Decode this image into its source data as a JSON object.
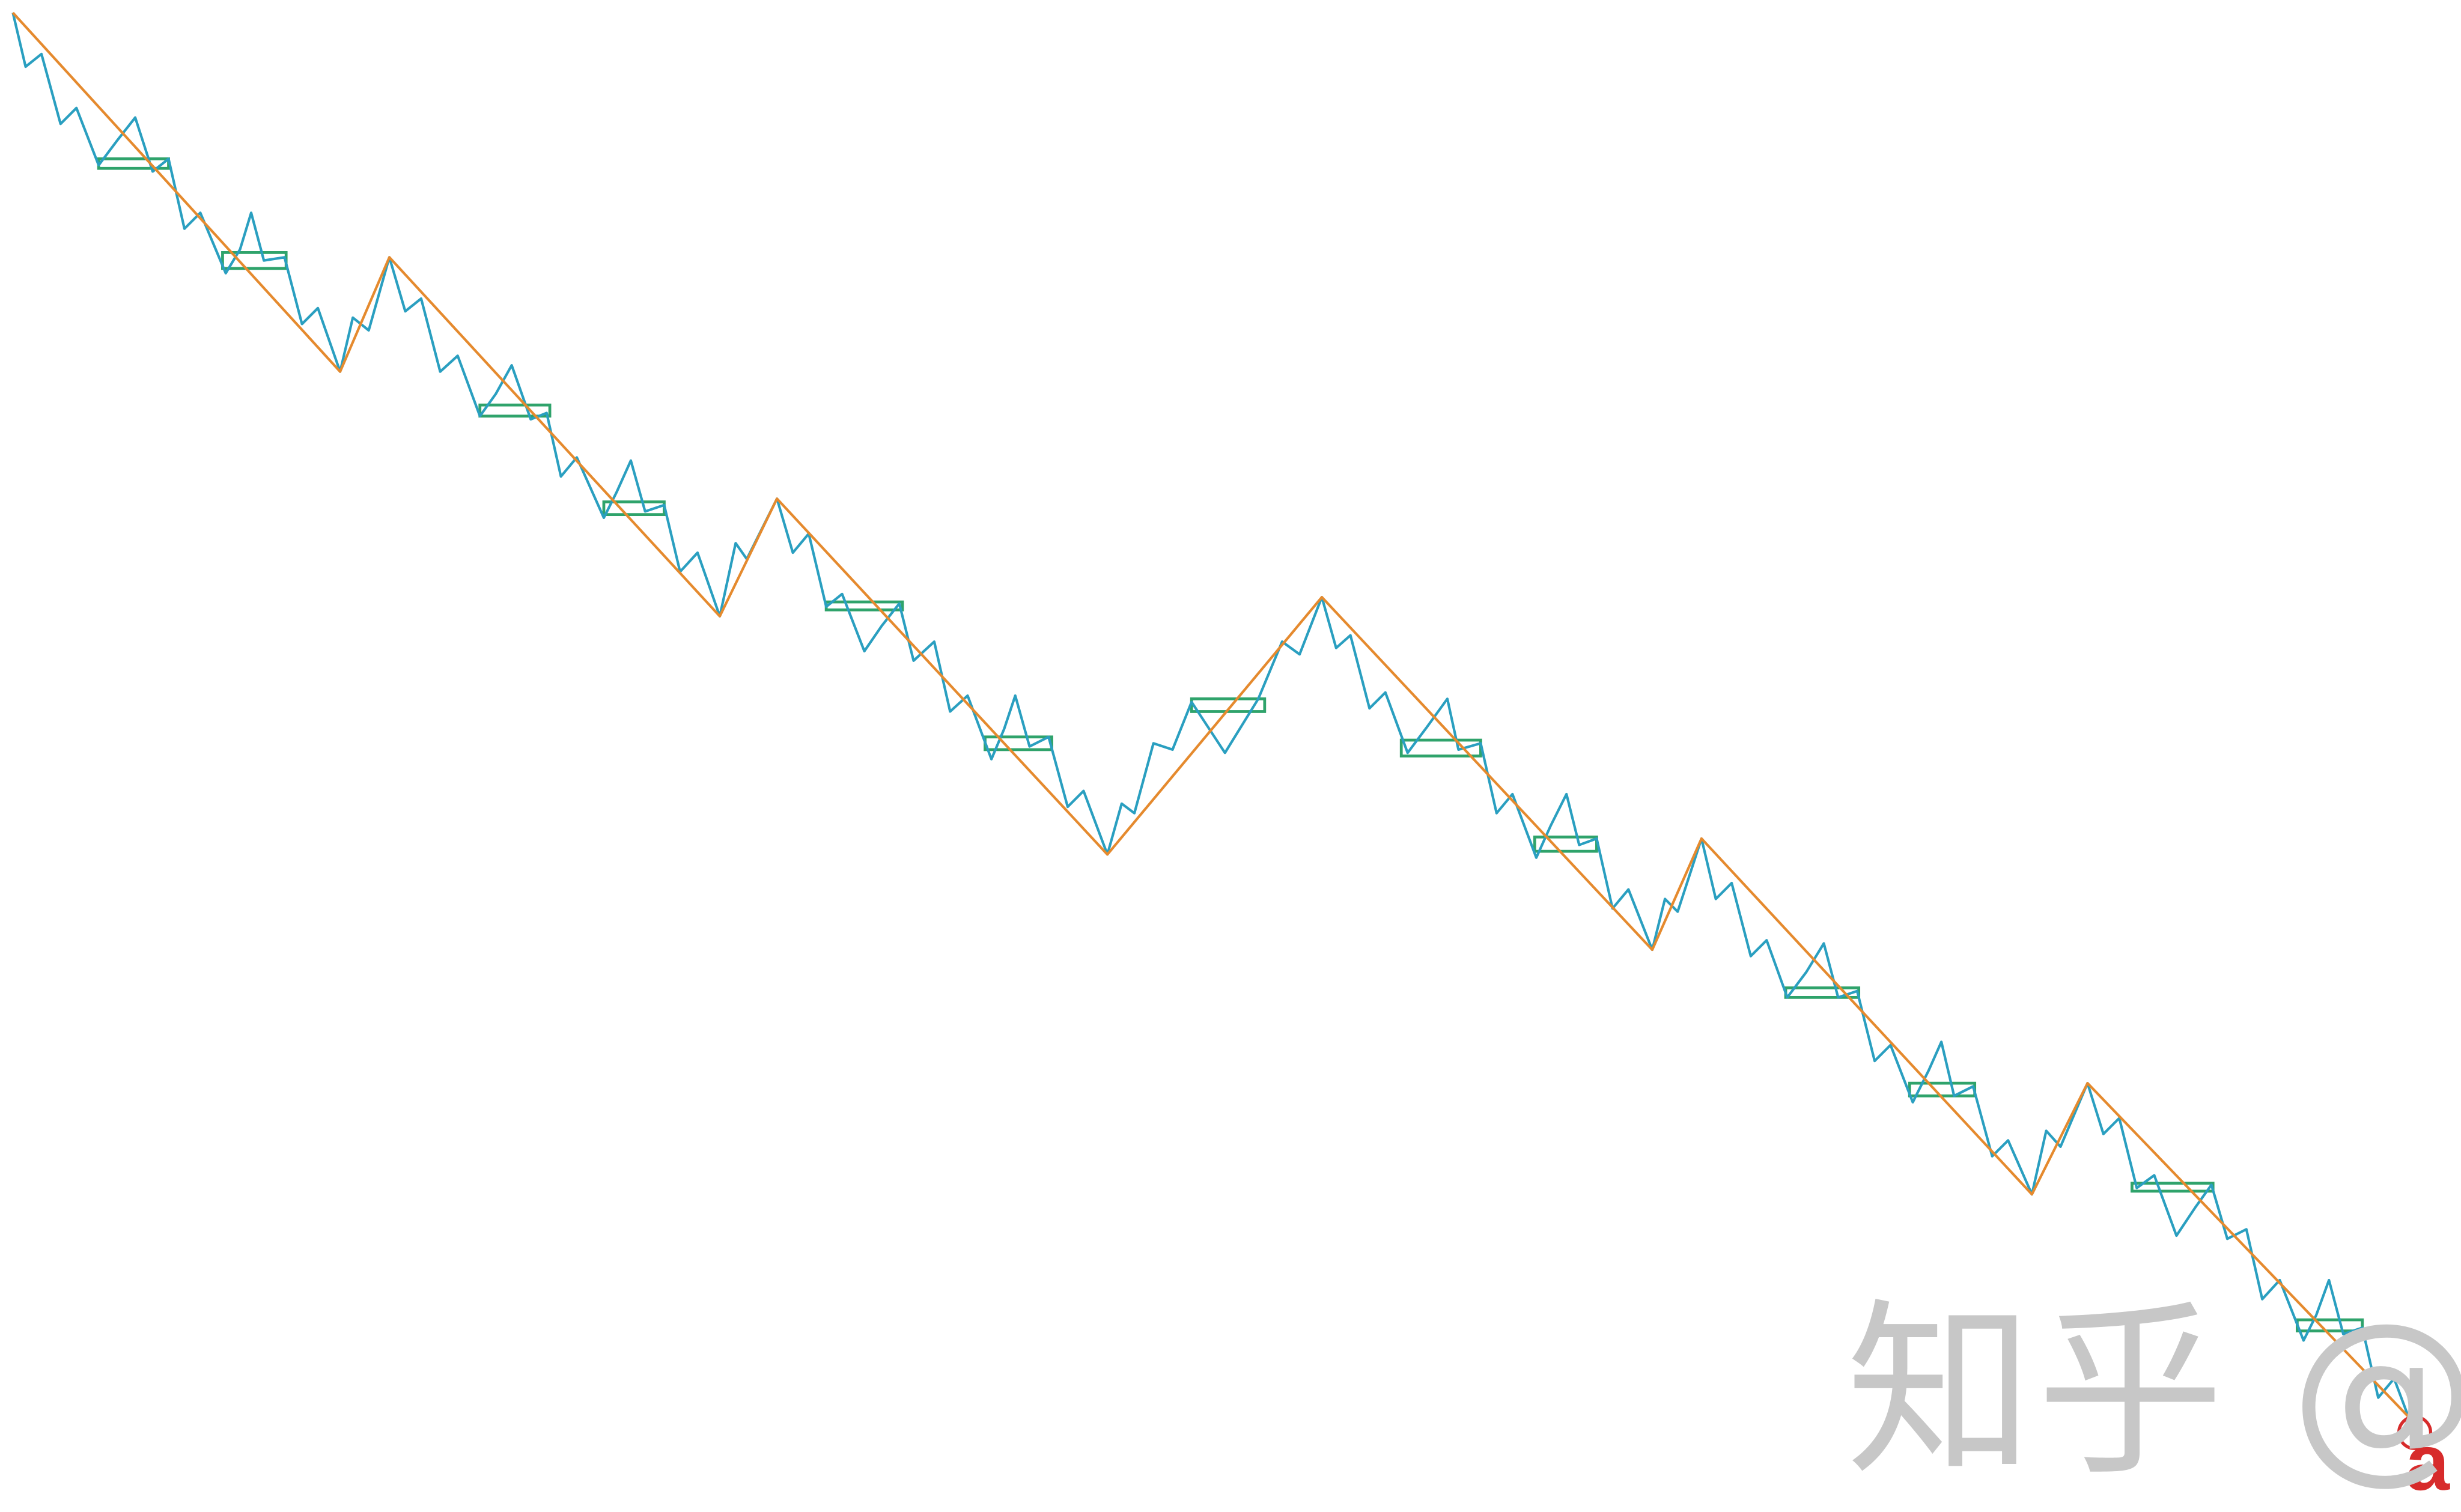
{
  "chart_data": {
    "type": "line",
    "grid": false,
    "x_range": [
      0,
      1534
    ],
    "y_range": [
      0,
      950
    ],
    "y_axis_inverted": true,
    "colors": {
      "fine_line": "#2a9fc0",
      "trend_line": "#e58a2e",
      "pivot_box": "#2fa36b",
      "marker": "#d72b2b",
      "watermark": "#c7c7c7"
    },
    "series": [
      {
        "role": "fine",
        "points": [
          [
            8,
            8
          ],
          [
            16,
            42
          ],
          [
            26,
            34
          ],
          [
            38,
            78
          ],
          [
            48,
            68
          ],
          [
            62,
            104
          ],
          [
            74,
            88
          ],
          [
            85,
            74
          ],
          [
            96,
            108
          ],
          [
            106,
            100
          ],
          [
            116,
            144
          ],
          [
            126,
            134
          ],
          [
            142,
            172
          ],
          [
            151,
            157
          ],
          [
            158,
            134
          ],
          [
            166,
            164
          ],
          [
            179,
            162
          ],
          [
            190,
            204
          ],
          [
            200,
            194
          ],
          [
            214,
            234
          ],
          [
            222,
            200
          ],
          [
            232,
            208
          ],
          [
            245,
            162
          ],
          [
            255,
            196
          ],
          [
            265,
            188
          ],
          [
            277,
            234
          ],
          [
            288,
            224
          ],
          [
            302,
            262
          ],
          [
            312,
            248
          ],
          [
            322,
            230
          ],
          [
            334,
            264
          ],
          [
            344,
            260
          ],
          [
            353,
            300
          ],
          [
            363,
            288
          ],
          [
            380,
            326
          ],
          [
            388,
            310
          ],
          [
            397,
            290
          ],
          [
            406,
            322
          ],
          [
            418,
            318
          ],
          [
            428,
            360
          ],
          [
            439,
            348
          ],
          [
            453,
            388
          ],
          [
            463,
            342
          ],
          [
            470,
            352
          ],
          [
            489,
            314
          ],
          [
            499,
            348
          ],
          [
            509,
            336
          ],
          [
            520,
            382
          ],
          [
            530,
            374
          ],
          [
            544,
            410
          ],
          [
            555,
            394
          ],
          [
            566,
            380
          ],
          [
            575,
            416
          ],
          [
            588,
            404
          ],
          [
            598,
            448
          ],
          [
            609,
            438
          ],
          [
            624,
            478
          ],
          [
            632,
            459
          ],
          [
            639,
            438
          ],
          [
            648,
            470
          ],
          [
            660,
            464
          ],
          [
            672,
            508
          ],
          [
            682,
            498
          ],
          [
            697,
            538
          ],
          [
            706,
            506
          ],
          [
            714,
            512
          ],
          [
            726,
            468
          ],
          [
            738,
            472
          ],
          [
            750,
            442
          ],
          [
            771,
            474
          ],
          [
            792,
            440
          ],
          [
            807,
            404
          ],
          [
            818,
            412
          ],
          [
            832,
            376
          ],
          [
            841,
            408
          ],
          [
            850,
            400
          ],
          [
            862,
            446
          ],
          [
            872,
            436
          ],
          [
            886,
            474
          ],
          [
            898,
            458
          ],
          [
            911,
            440
          ],
          [
            918,
            472
          ],
          [
            932,
            468
          ],
          [
            942,
            512
          ],
          [
            952,
            500
          ],
          [
            967,
            540
          ],
          [
            976,
            520
          ],
          [
            986,
            500
          ],
          [
            994,
            532
          ],
          [
            1005,
            528
          ],
          [
            1015,
            572
          ],
          [
            1025,
            560
          ],
          [
            1040,
            598
          ],
          [
            1048,
            566
          ],
          [
            1056,
            574
          ],
          [
            1071,
            528
          ],
          [
            1080,
            566
          ],
          [
            1090,
            556
          ],
          [
            1102,
            602
          ],
          [
            1112,
            592
          ],
          [
            1125,
            628
          ],
          [
            1137,
            612
          ],
          [
            1148,
            594
          ],
          [
            1157,
            628
          ],
          [
            1169,
            624
          ],
          [
            1180,
            668
          ],
          [
            1190,
            658
          ],
          [
            1204,
            694
          ],
          [
            1214,
            674
          ],
          [
            1222,
            656
          ],
          [
            1230,
            690
          ],
          [
            1242,
            684
          ],
          [
            1254,
            728
          ],
          [
            1264,
            718
          ],
          [
            1279,
            752
          ],
          [
            1288,
            712
          ],
          [
            1297,
            722
          ],
          [
            1314,
            682
          ],
          [
            1324,
            714
          ],
          [
            1334,
            704
          ],
          [
            1345,
            748
          ],
          [
            1356,
            740
          ],
          [
            1370,
            778
          ],
          [
            1382,
            760
          ],
          [
            1392,
            746
          ],
          [
            1402,
            780
          ],
          [
            1414,
            774
          ],
          [
            1424,
            818
          ],
          [
            1435,
            806
          ],
          [
            1450,
            844
          ],
          [
            1458,
            828
          ],
          [
            1466,
            806
          ],
          [
            1475,
            840
          ],
          [
            1487,
            836
          ],
          [
            1497,
            880
          ],
          [
            1507,
            868
          ],
          [
            1516,
            892
          ]
        ]
      },
      {
        "role": "trend",
        "points": [
          [
            8,
            8
          ],
          [
            214,
            234
          ],
          [
            245,
            162
          ],
          [
            453,
            388
          ],
          [
            489,
            314
          ],
          [
            697,
            538
          ],
          [
            832,
            376
          ],
          [
            1040,
            598
          ],
          [
            1071,
            528
          ],
          [
            1279,
            752
          ],
          [
            1314,
            682
          ],
          [
            1516,
            892
          ]
        ]
      }
    ],
    "pivot_boxes": [
      [
        62,
        100,
        106,
        106
      ],
      [
        140,
        159,
        180,
        169
      ],
      [
        302,
        255,
        346,
        262
      ],
      [
        380,
        316,
        418,
        324
      ],
      [
        520,
        379,
        568,
        384
      ],
      [
        620,
        464,
        662,
        472
      ],
      [
        750,
        440,
        796,
        448
      ],
      [
        882,
        466,
        932,
        476
      ],
      [
        966,
        527,
        1005,
        536
      ],
      [
        1124,
        622,
        1170,
        628
      ],
      [
        1202,
        682,
        1243,
        690
      ],
      [
        1342,
        745,
        1393,
        750
      ],
      [
        1446,
        831,
        1487,
        838
      ]
    ],
    "marker": {
      "x": 1520,
      "y": 902,
      "label": "a"
    },
    "watermark": "知乎 @Yule Chen"
  }
}
